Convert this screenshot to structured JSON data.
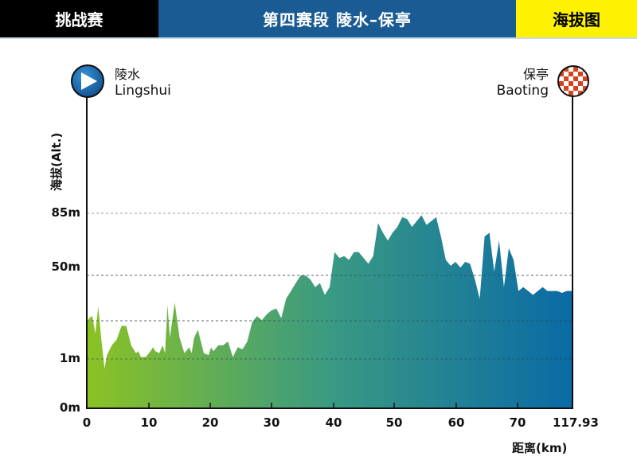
{
  "header": {
    "left_label": "挑战赛",
    "title": "第四赛段  陵水–保亭",
    "right_label": "海拔图"
  },
  "colors": {
    "header_left_bg": "#000000",
    "header_mid_bg": "#1a5b94",
    "header_right_bg": "#fff200",
    "gradient_start": "#8bc224",
    "gradient_mid": "#3a9a83",
    "gradient_end": "#0a6aa5",
    "start_marker": "#1b6fb8",
    "finish_marker_check": "#d8431f"
  },
  "start": {
    "name_cn": "陵水",
    "name_en": "Lingshui",
    "icon": "play-icon"
  },
  "finish": {
    "name_cn": "保亭",
    "name_en": "Baoting",
    "icon": "checkered-flag-icon"
  },
  "chart_data": {
    "type": "area",
    "title": "第四赛段 陵水–保亭 海拔图",
    "xlabel": "距离(km)",
    "ylabel": "海拔(Alt.)",
    "x_ticks": [
      "0",
      "10",
      "20",
      "30",
      "40",
      "50",
      "60",
      "70",
      "117.93"
    ],
    "y_ticks": [
      "0m",
      "1m",
      "50m",
      "85m"
    ],
    "y_gridlines": [
      "1m",
      "unlabeled",
      "50m",
      "85m"
    ],
    "grid": true,
    "legend": "none",
    "xlim": [
      0,
      117.93
    ],
    "note": "Axis is non-linear; tick labels shown as printed. Profile given as relative heights (0 = baseline, 1 = 85m gridline).",
    "profile": {
      "x_fraction": [
        0,
        0.003,
        0.01,
        0.016,
        0.022,
        0.028,
        0.035,
        0.04,
        0.05,
        0.06,
        0.07,
        0.08,
        0.09,
        0.1,
        0.105,
        0.11,
        0.12,
        0.13,
        0.135,
        0.14,
        0.148,
        0.155,
        0.16,
        0.165,
        0.17,
        0.18,
        0.19,
        0.2,
        0.21,
        0.215,
        0.22,
        0.228,
        0.236,
        0.24,
        0.25,
        0.255,
        0.26,
        0.27,
        0.28,
        0.29,
        0.3,
        0.31,
        0.32,
        0.33,
        0.34,
        0.35,
        0.36,
        0.37,
        0.38,
        0.39,
        0.4,
        0.41,
        0.42,
        0.43,
        0.44,
        0.45,
        0.46,
        0.47,
        0.48,
        0.49,
        0.5,
        0.51,
        0.52,
        0.53,
        0.54,
        0.55,
        0.56,
        0.57,
        0.58,
        0.59,
        0.6,
        0.61,
        0.62,
        0.63,
        0.64,
        0.65,
        0.66,
        0.67,
        0.68,
        0.69,
        0.7,
        0.71,
        0.72,
        0.73,
        0.74,
        0.75,
        0.76,
        0.77,
        0.78,
        0.79,
        0.8,
        0.81,
        0.82,
        0.83,
        0.84,
        0.85,
        0.86,
        0.87,
        0.88,
        0.89,
        0.9,
        0.91,
        0.92,
        0.93,
        0.94,
        0.95,
        0.96,
        0.97,
        0.98,
        0.99,
        1
      ],
      "height": [
        0.44,
        0.46,
        0.47,
        0.38,
        0.52,
        0.36,
        0.2,
        0.27,
        0.32,
        0.35,
        0.42,
        0.42,
        0.32,
        0.28,
        0.29,
        0.26,
        0.26,
        0.29,
        0.31,
        0.29,
        0.28,
        0.32,
        0.28,
        0.53,
        0.36,
        0.54,
        0.36,
        0.28,
        0.31,
        0.28,
        0.36,
        0.4,
        0.32,
        0.28,
        0.27,
        0.31,
        0.29,
        0.32,
        0.32,
        0.34,
        0.26,
        0.31,
        0.3,
        0.34,
        0.44,
        0.47,
        0.45,
        0.48,
        0.5,
        0.51,
        0.46,
        0.56,
        0.6,
        0.64,
        0.68,
        0.68,
        0.66,
        0.62,
        0.64,
        0.58,
        0.62,
        0.8,
        0.77,
        0.78,
        0.76,
        0.8,
        0.8,
        0.77,
        0.74,
        0.78,
        0.95,
        0.9,
        0.86,
        0.9,
        0.93,
        0.98,
        0.97,
        0.93,
        0.96,
        0.99,
        0.94,
        0.96,
        0.98,
        0.88,
        0.76,
        0.73,
        0.75,
        0.72,
        0.75,
        0.74,
        0.66,
        0.56,
        0.88,
        0.9,
        0.7,
        0.86,
        0.62,
        0.82,
        0.76,
        0.6,
        0.62,
        0.6,
        0.58,
        0.6,
        0.62,
        0.6,
        0.6,
        0.6,
        0.59,
        0.6,
        0.6
      ]
    }
  }
}
